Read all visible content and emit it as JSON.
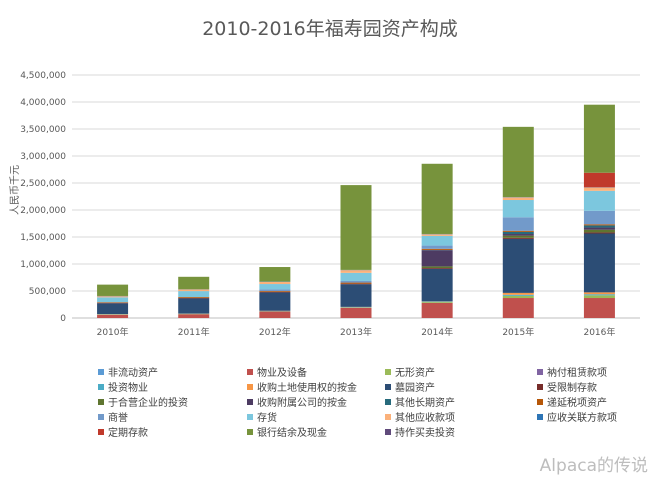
{
  "watermark": "Alpaca的传说",
  "colors": {
    "非流动资产": "#5b9bd5",
    "物业及设备": "#c0504d",
    "无形资产": "#9bbb59",
    "衲付租赁款项": "#8064a2",
    "投资物业": "#4bacc6",
    "收购土地使用权的按金": "#f79646",
    "墓园资产": "#2c4d75",
    "受限制存款": "#772c2a",
    "于合营企业的投资": "#5f7530",
    "收购附属公司的按金": "#4d3b62",
    "其他长期资产": "#276a7c",
    "递延税项资产": "#b65708",
    "商誉": "#729aca",
    "存货": "#7cc7de",
    "其他应收款项": "#fbb17a",
    "应收关联方款项": "#2e75b6",
    "定期存款": "#c0392b",
    "银行结余及现金": "#77933c",
    "持作买卖投资": "#604a7b"
  },
  "chart_data": {
    "type": "bar",
    "stacked": true,
    "title": "2010-2016年福寿园资产构成",
    "ylabel": "人民币千元",
    "xlabel": "",
    "ylim": [
      0,
      4500000
    ],
    "y_ticks": [
      "0",
      "500,000",
      "1,000,000",
      "1,500,000",
      "2,000,000",
      "2,500,000",
      "3,000,000",
      "3,500,000",
      "4,000,000",
      "4,500,000"
    ],
    "categories": [
      "2010年",
      "2011年",
      "2012年",
      "2013年",
      "2014年",
      "2015年",
      "2016年"
    ],
    "legend_position": "bottom",
    "legend": [
      "非流动资产",
      "物业及设备",
      "无形资产",
      "衲付租赁款项",
      "投资物业",
      "收购土地使用权的按金",
      "墓园资产",
      "受限制存款",
      "于合营企业的投资",
      "收购附属公司的按金",
      "其他长期资产",
      "递延税项资产",
      "商誉",
      "存货",
      "其他应收款项",
      "应收关联方款项",
      "定期存款",
      "银行结余及现金",
      "持作买卖投资"
    ],
    "series": [
      {
        "name": "物业及设备",
        "values": [
          60000,
          70000,
          120000,
          190000,
          280000,
          370000,
          370000
        ]
      },
      {
        "name": "无形资产",
        "values": [
          5000,
          5000,
          6000,
          8000,
          15000,
          40000,
          50000
        ]
      },
      {
        "name": "投资物业",
        "values": [
          5000,
          5000,
          5000,
          5000,
          10000,
          20000,
          20000
        ]
      },
      {
        "name": "收购土地使用权的按金",
        "values": [
          3000,
          3000,
          3000,
          3000,
          6000,
          35000,
          35000
        ]
      },
      {
        "name": "墓园资产",
        "values": [
          200000,
          280000,
          340000,
          420000,
          600000,
          1000000,
          1090000
        ]
      },
      {
        "name": "受限制存款",
        "values": [
          10000,
          10000,
          10000,
          10000,
          15000,
          20000,
          20000
        ]
      },
      {
        "name": "于合营企业的投资",
        "values": [
          0,
          0,
          0,
          0,
          30000,
          40000,
          50000
        ]
      },
      {
        "name": "收购附属公司的按金",
        "values": [
          0,
          0,
          0,
          0,
          300000,
          30000,
          40000
        ]
      },
      {
        "name": "其他长期资产",
        "values": [
          0,
          0,
          0,
          0,
          5000,
          40000,
          40000
        ]
      },
      {
        "name": "递延税项资产",
        "values": [
          10000,
          15000,
          15000,
          20000,
          20000,
          20000,
          20000
        ]
      },
      {
        "name": "商誉",
        "values": [
          0,
          0,
          30000,
          30000,
          60000,
          250000,
          250000
        ]
      },
      {
        "name": "存货",
        "values": [
          90000,
          110000,
          100000,
          150000,
          180000,
          320000,
          370000
        ]
      },
      {
        "name": "其他应收款项",
        "values": [
          20000,
          30000,
          40000,
          50000,
          30000,
          50000,
          60000
        ]
      },
      {
        "name": "应收关联方款项",
        "values": [
          5000,
          5000,
          5000,
          5000,
          5000,
          5000,
          5000
        ]
      },
      {
        "name": "定期存款",
        "values": [
          0,
          0,
          0,
          0,
          0,
          0,
          270000
        ]
      },
      {
        "name": "银行结余及现金",
        "values": [
          210000,
          230000,
          270000,
          1570000,
          1300000,
          1300000,
          1260000
        ]
      }
    ]
  }
}
